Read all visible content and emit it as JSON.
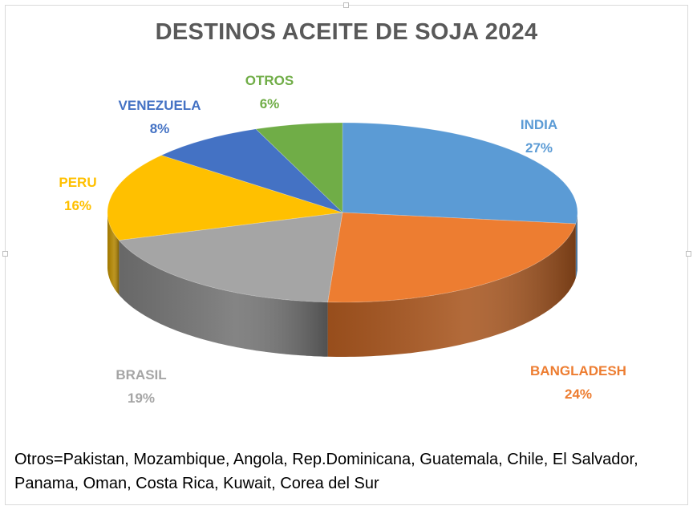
{
  "chart_data": {
    "type": "pie",
    "title": "DESTINOS ACEITE DE SOJA 2024",
    "slices": [
      {
        "label": "INDIA",
        "value": 27,
        "value_label": "27%",
        "color": "#5b9bd5",
        "side": "#3f6f9b"
      },
      {
        "label": "BANGLADESH",
        "value": 24,
        "value_label": "24%",
        "color": "#ed7d31",
        "side": "#a8561f"
      },
      {
        "label": "BRASIL",
        "value": 19,
        "value_label": "19%",
        "color": "#a5a5a5",
        "side": "#737373"
      },
      {
        "label": "PERU",
        "value": 16,
        "value_label": "16%",
        "color": "#ffc000",
        "side": "#b38600"
      },
      {
        "label": "VENEZUELA",
        "value": 8,
        "value_label": "8%",
        "color": "#4472c4",
        "side": "#2e4f8a"
      },
      {
        "label": "OTROS",
        "value": 6,
        "value_label": "6%",
        "color": "#70ad47",
        "side": "#4e7a31"
      }
    ],
    "legend": "none",
    "style": "3d"
  },
  "footnote": "Otros=Pakistan, Mozambique, Angola, Rep.Dominicana, Guatemala, Chile, El Salvador, Panama, Oman, Costa Rica, Kuwait, Corea del Sur"
}
